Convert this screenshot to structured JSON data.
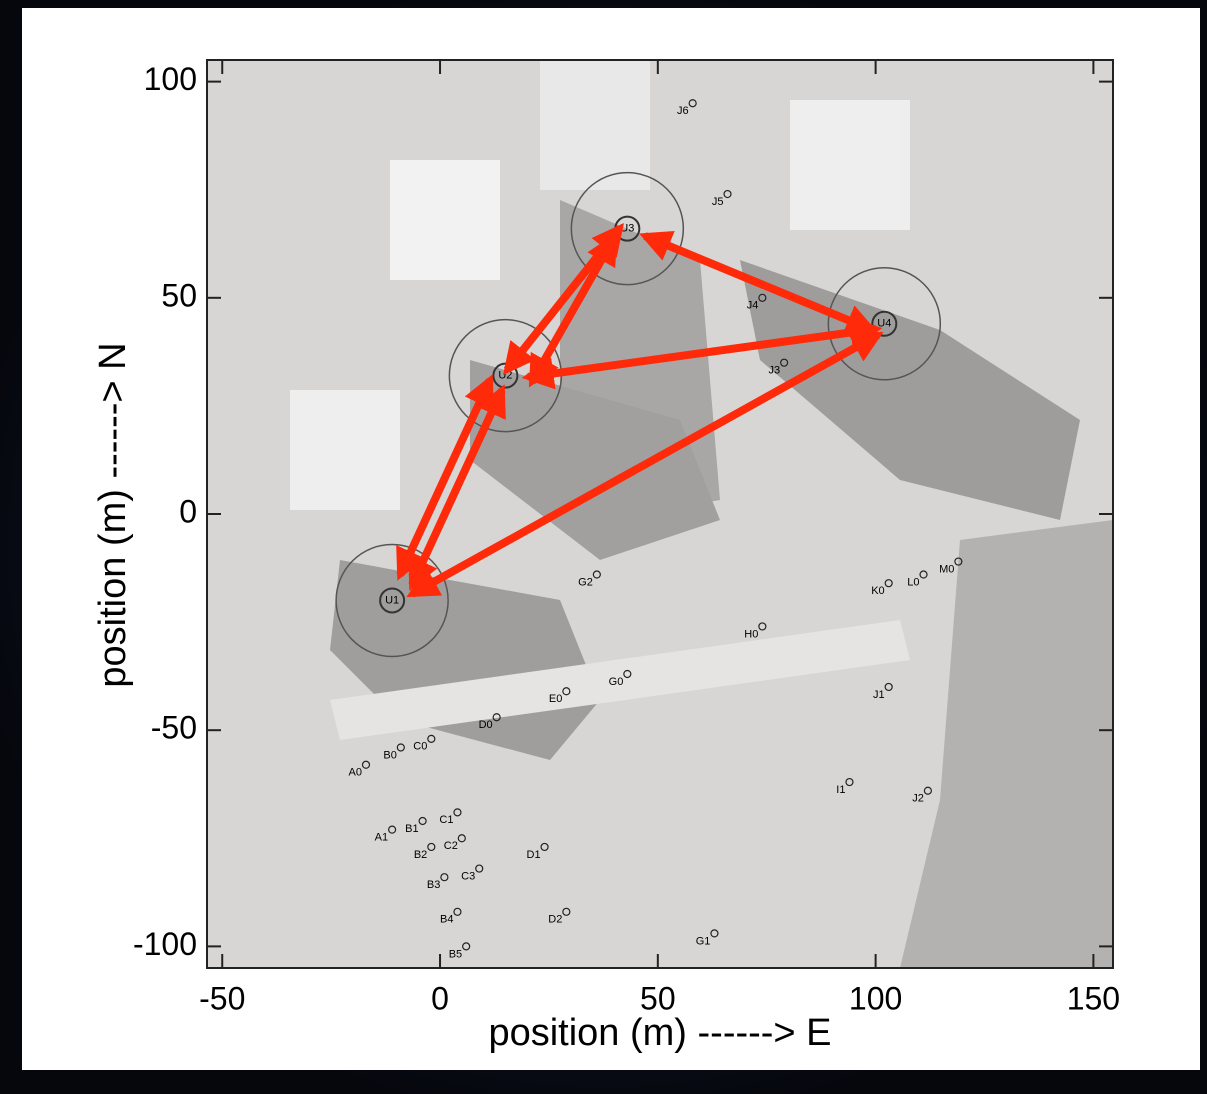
{
  "chart_data": {
    "type": "scatter",
    "xlabel": "position (m) ------> E",
    "ylabel": "position (m) ------> N",
    "xlim": [
      -53.5,
      154.5
    ],
    "ylim": [
      -105,
      105
    ],
    "xticks": [
      -50,
      0,
      50,
      100,
      150
    ],
    "yticks": [
      -100,
      -50,
      0,
      50,
      100
    ],
    "points": [
      {
        "label": "U1",
        "x": -11,
        "y": -20
      },
      {
        "label": "U2",
        "x": 15,
        "y": 32
      },
      {
        "label": "U3",
        "x": 43,
        "y": 66
      },
      {
        "label": "U4",
        "x": 102,
        "y": 44
      },
      {
        "label": "J6",
        "x": 58,
        "y": 95
      },
      {
        "label": "J5",
        "x": 66,
        "y": 74
      },
      {
        "label": "J4",
        "x": 74,
        "y": 50
      },
      {
        "label": "J3",
        "x": 79,
        "y": 35
      },
      {
        "label": "G2",
        "x": 36,
        "y": -14
      },
      {
        "label": "K0",
        "x": 103,
        "y": -16
      },
      {
        "label": "L0",
        "x": 111,
        "y": -14
      },
      {
        "label": "M0",
        "x": 119,
        "y": -11
      },
      {
        "label": "H0",
        "x": 74,
        "y": -26
      },
      {
        "label": "G0",
        "x": 43,
        "y": -37
      },
      {
        "label": "J1",
        "x": 103,
        "y": -40
      },
      {
        "label": "E0",
        "x": 29,
        "y": -41
      },
      {
        "label": "D0",
        "x": 13,
        "y": -47
      },
      {
        "label": "A0",
        "x": -17,
        "y": -58
      },
      {
        "label": "B0",
        "x": -9,
        "y": -54
      },
      {
        "label": "C0",
        "x": -2,
        "y": -52
      },
      {
        "label": "I1",
        "x": 94,
        "y": -62
      },
      {
        "label": "J2",
        "x": 112,
        "y": -64
      },
      {
        "label": "A1",
        "x": -11,
        "y": -73
      },
      {
        "label": "B1",
        "x": -4,
        "y": -71
      },
      {
        "label": "C1",
        "x": 4,
        "y": -69
      },
      {
        "label": "B2",
        "x": -2,
        "y": -77
      },
      {
        "label": "C2",
        "x": 5,
        "y": -75
      },
      {
        "label": "D1",
        "x": 24,
        "y": -77
      },
      {
        "label": "B3",
        "x": 1,
        "y": -84
      },
      {
        "label": "C3",
        "x": 9,
        "y": -82
      },
      {
        "label": "B4",
        "x": 4,
        "y": -92
      },
      {
        "label": "D2",
        "x": 29,
        "y": -92
      },
      {
        "label": "G1",
        "x": 63,
        "y": -97
      },
      {
        "label": "B5",
        "x": 6,
        "y": -100
      }
    ]
  }
}
